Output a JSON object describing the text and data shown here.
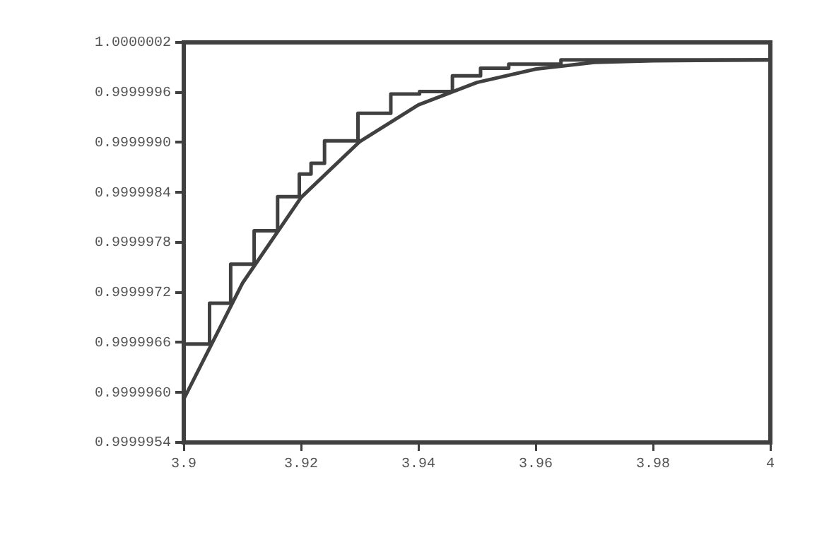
{
  "chart_data": {
    "type": "line",
    "series": [
      {
        "type": "step",
        "color": "#404040",
        "x": [
          3.9,
          3.9044,
          3.908,
          3.912,
          3.916,
          3.9197,
          3.9217,
          3.924,
          3.9297,
          3.9353,
          3.9402,
          3.9458,
          3.9506,
          3.9554,
          3.9643,
          3.9754,
          4
        ],
        "values": [
          0.9999959,
          0.99999658,
          0.99999707,
          0.99999754,
          0.99999794,
          0.99999835,
          0.99999862,
          0.99999875,
          0.99999902,
          0.99999935,
          0.99999958,
          0.99999961,
          0.9999998,
          0.99999989,
          0.99999994,
          0.99999999,
          0.99999999
        ]
      },
      {
        "type": "line",
        "color": "#404040",
        "x": [
          3.9,
          3.91,
          3.92,
          3.93,
          3.94,
          3.95,
          3.96,
          3.97,
          3.98,
          4
        ],
        "values": [
          0.99999592,
          0.99999731,
          0.99999834,
          0.99999901,
          0.99999945,
          0.99999972,
          0.99999988,
          0.99999996,
          0.99999998,
          0.99999999
        ]
      }
    ],
    "xlim": [
      3.9,
      4
    ],
    "xticks": [
      3.9,
      3.92,
      3.94,
      3.96,
      3.98,
      4
    ],
    "ylim": [
      0.9999954,
      1.0000002
    ],
    "yticks": [
      0.9999954,
      {
        "value": 0.999996,
        "label": "0.9999960"
      },
      0.9999966,
      0.9999972,
      0.9999978,
      0.9999984,
      {
        "value": 0.999999,
        "label": "0.9999990"
      },
      0.9999996,
      1.0000002
    ],
    "grid": false,
    "legend": false,
    "marker": "none",
    "line_style": "solid"
  }
}
